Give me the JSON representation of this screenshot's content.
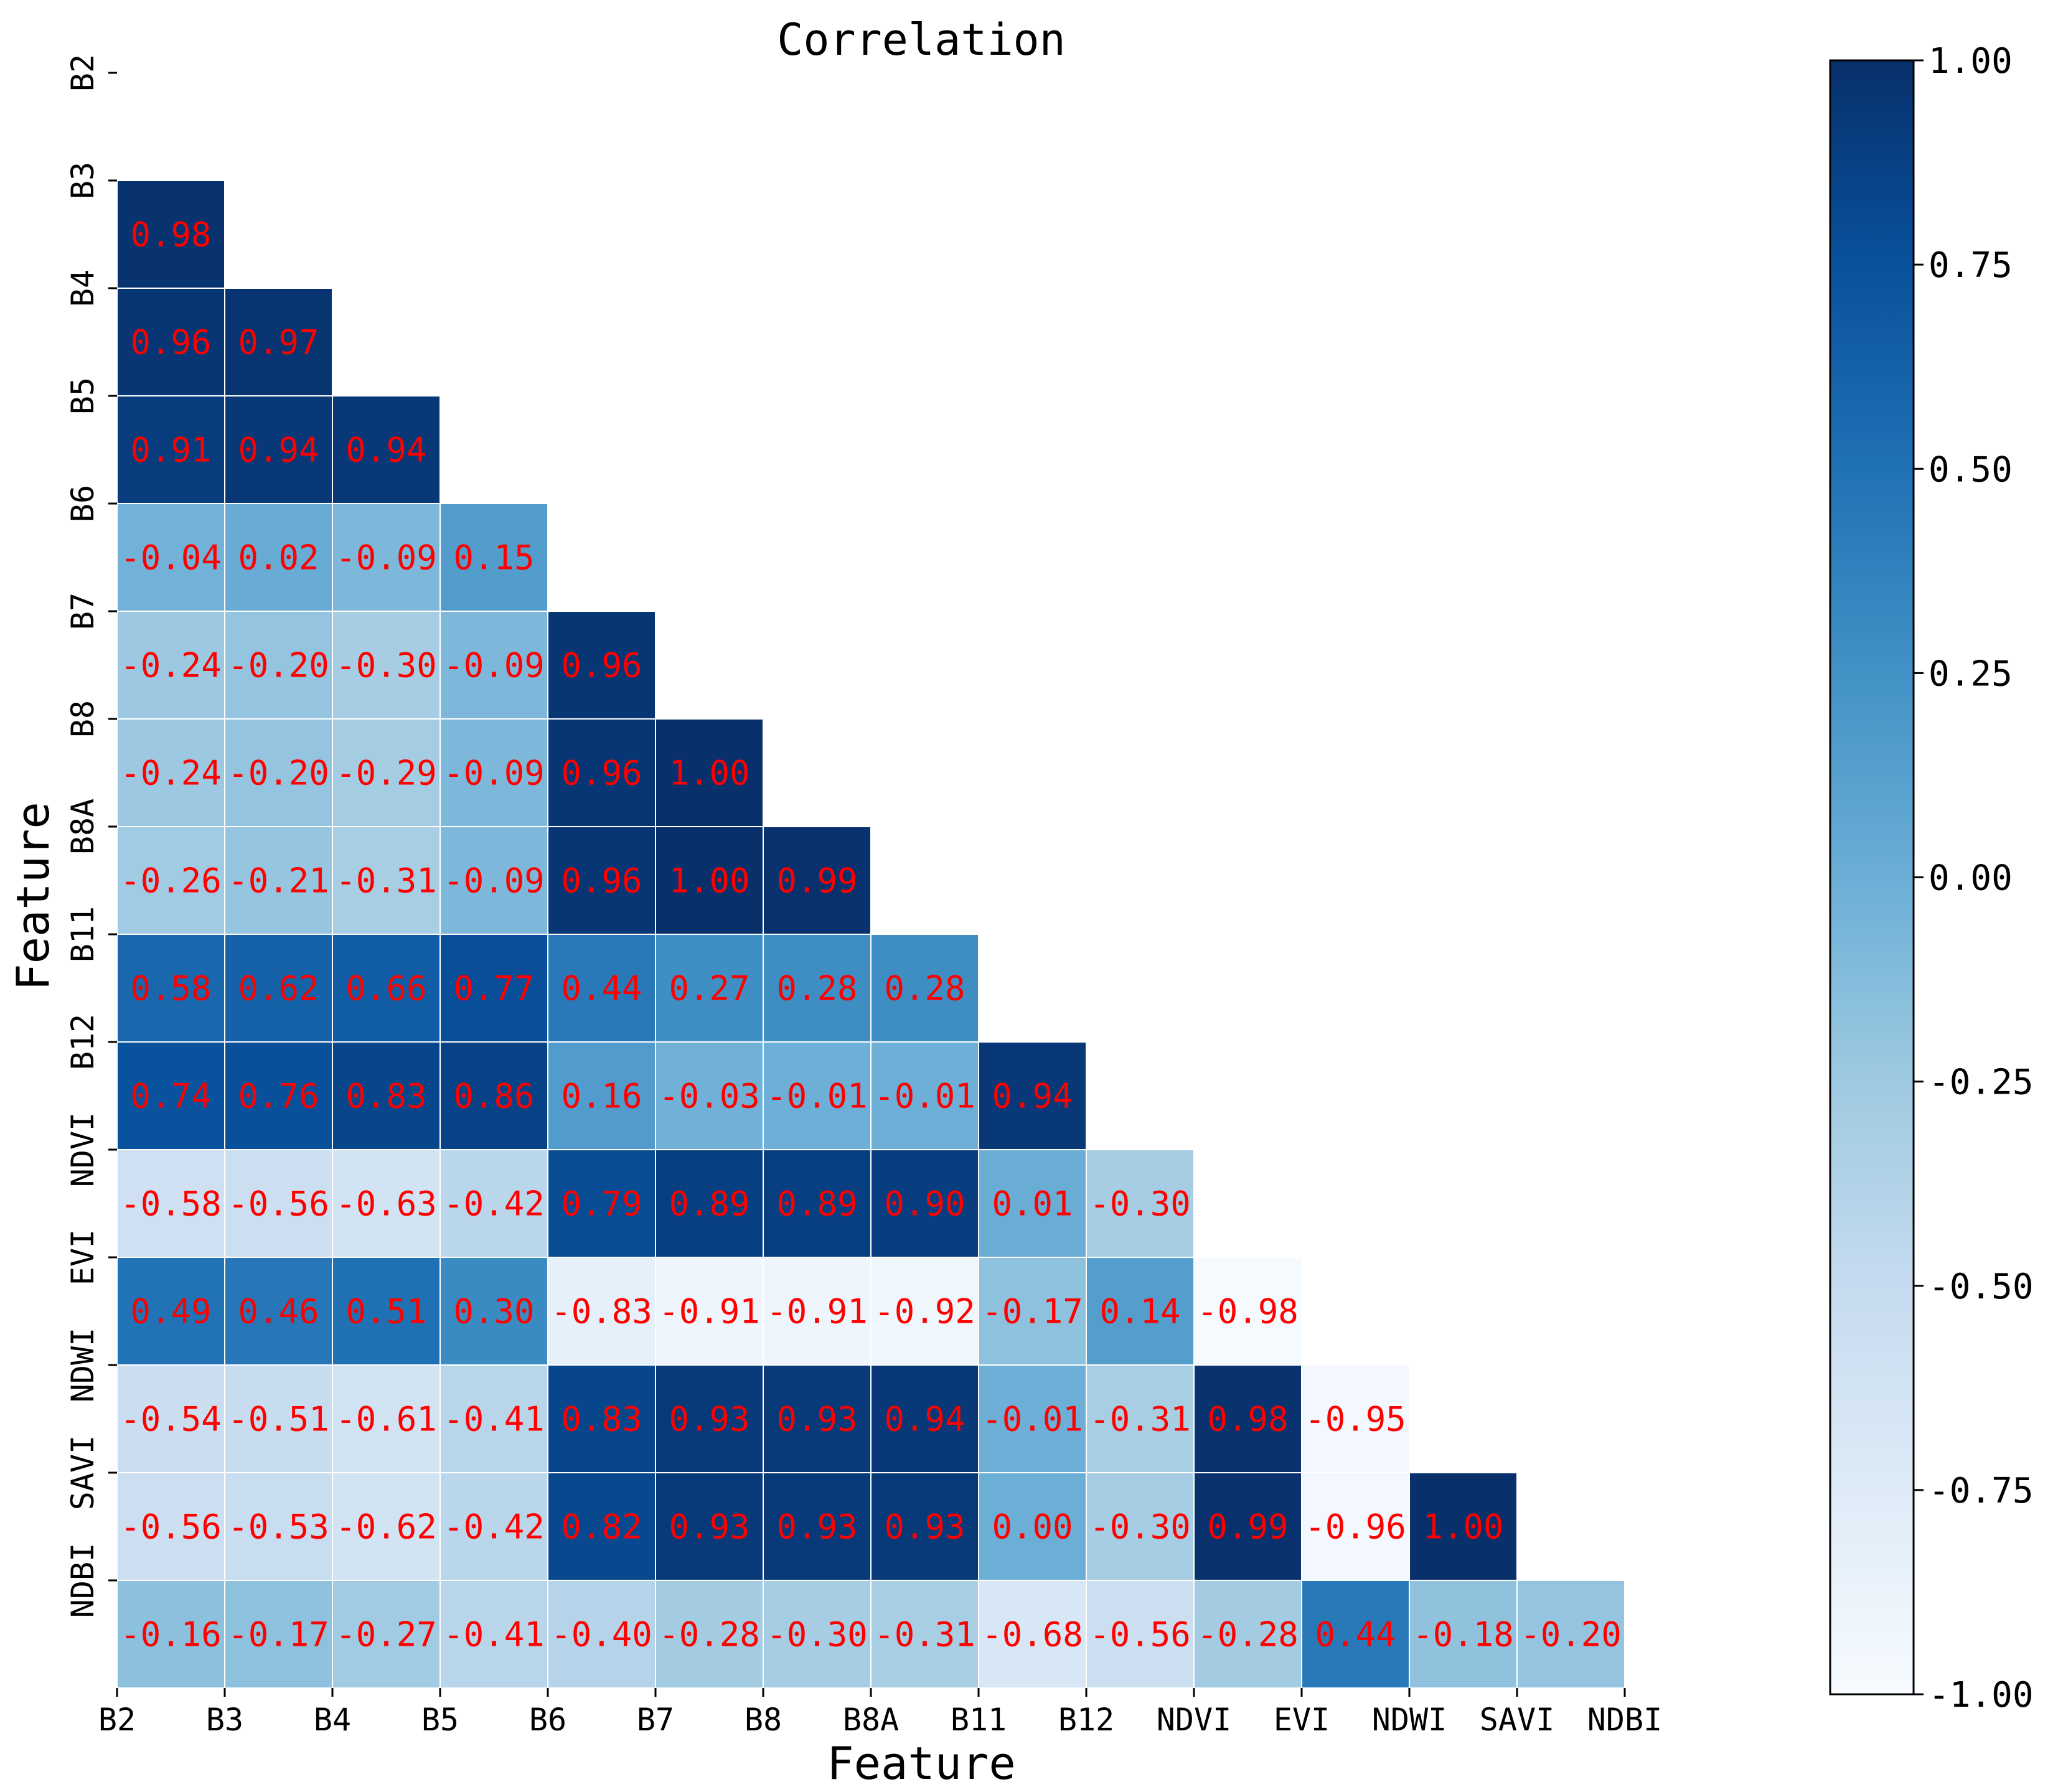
{
  "chart_data": {
    "type": "heatmap",
    "title": "Correlation",
    "xlabel": "Feature",
    "ylabel": "Feature",
    "features": [
      "B2",
      "B3",
      "B4",
      "B5",
      "B6",
      "B7",
      "B8",
      "B8A",
      "B11",
      "B12",
      "NDVI",
      "EVI",
      "NDWI",
      "SAVI",
      "NDBI"
    ],
    "mask": "upper-triangle-and-diagonal",
    "matrix": [
      [],
      [
        "0.98"
      ],
      [
        "0.96",
        "0.97"
      ],
      [
        "0.91",
        "0.94",
        "0.94"
      ],
      [
        "-0.04",
        "0.02",
        "-0.09",
        "0.15"
      ],
      [
        "-0.24",
        "-0.20",
        "-0.30",
        "-0.09",
        "0.96"
      ],
      [
        "-0.24",
        "-0.20",
        "-0.29",
        "-0.09",
        "0.96",
        "1.00"
      ],
      [
        "-0.26",
        "-0.21",
        "-0.31",
        "-0.09",
        "0.96",
        "1.00",
        "0.99"
      ],
      [
        "0.58",
        "0.62",
        "0.66",
        "0.77",
        "0.44",
        "0.27",
        "0.28",
        "0.28"
      ],
      [
        "0.74",
        "0.76",
        "0.83",
        "0.86",
        "0.16",
        "-0.03",
        "-0.01",
        "-0.01",
        "0.94"
      ],
      [
        "-0.58",
        "-0.56",
        "-0.63",
        "-0.42",
        "0.79",
        "0.89",
        "0.89",
        "0.90",
        "0.01",
        "-0.30"
      ],
      [
        "0.49",
        "0.46",
        "0.51",
        "0.30",
        "-0.83",
        "-0.91",
        "-0.91",
        "-0.92",
        "-0.17",
        "0.14",
        "-0.98"
      ],
      [
        "-0.54",
        "-0.51",
        "-0.61",
        "-0.41",
        "0.83",
        "0.93",
        "0.93",
        "0.94",
        "-0.01",
        "-0.31",
        "0.98",
        "-0.95"
      ],
      [
        "-0.56",
        "-0.53",
        "-0.62",
        "-0.42",
        "0.82",
        "0.93",
        "0.93",
        "0.93",
        "0.00",
        "-0.30",
        "0.99",
        "-0.96",
        "1.00"
      ],
      [
        "-0.16",
        "-0.17",
        "-0.27",
        "-0.41",
        "-0.40",
        "-0.28",
        "-0.30",
        "-0.31",
        "-0.68",
        "-0.56",
        "-0.28",
        "0.44",
        "-0.18",
        "-0.20"
      ]
    ],
    "colormap": "Blues",
    "colorbar": {
      "range": [
        -1,
        1
      ],
      "ticks": [
        "1.00",
        "0.75",
        "0.50",
        "0.25",
        "0.00",
        "-0.25",
        "-0.50",
        "-0.75",
        "-1.00"
      ],
      "tick_values": [
        1.0,
        0.75,
        0.5,
        0.25,
        0.0,
        -0.25,
        -0.5,
        -0.75,
        -1.0
      ]
    },
    "label_color": "#ff0000",
    "grid": false
  }
}
